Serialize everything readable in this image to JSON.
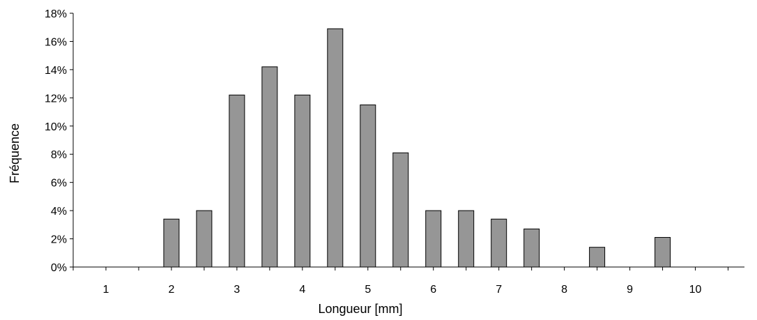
{
  "chart_data": {
    "type": "bar",
    "xlabel": "Longueur [mm]",
    "ylabel": "Fréquence",
    "x_tick_labels": [
      "1",
      "2",
      "3",
      "4",
      "5",
      "6",
      "7",
      "8",
      "9",
      "10"
    ],
    "y_tick_labels": [
      "0%",
      "2%",
      "4%",
      "6%",
      "8%",
      "10%",
      "12%",
      "14%",
      "16%",
      "18%"
    ],
    "ylim": [
      0,
      18
    ],
    "xlim": [
      0.5,
      10.75
    ],
    "bar_color": "#969696",
    "bar_edge_color": "#000000",
    "grid": false,
    "legend": "none",
    "series": [
      {
        "x": [
          1,
          1.5,
          2,
          2.5,
          3,
          3.5,
          4,
          4.5,
          5,
          5.5,
          6,
          6.5,
          7,
          7.5,
          8,
          8.5,
          9,
          9.5,
          10,
          10.5
        ],
        "values": [
          0,
          0,
          3.4,
          4.0,
          12.2,
          14.2,
          12.2,
          16.9,
          11.5,
          8.1,
          4.0,
          4.0,
          3.4,
          2.7,
          0,
          1.4,
          0,
          2.1,
          0,
          0
        ]
      }
    ]
  }
}
